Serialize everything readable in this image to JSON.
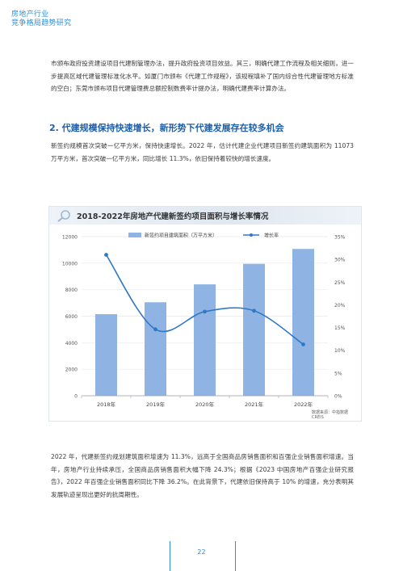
{
  "header": {
    "line1": "房地产行业",
    "line2": "竞争格局趋势研究"
  },
  "intro_paragraph": "市颁布政府投资建设项目代建制管理办法，提升政府投资项目效益。其三，明确代建工作流程及相关细则，进一步提高区域代建管理标准化水平。如厦门市颁布《代建工作规程》，该规程填补了国内综合性代建管理地方标准的空白；东莞市颁布项目代建管理费总额控制数费率计提办法，明确代建费率计算办法。",
  "section_heading": "2. 代建规模保持快速增长，新形势下代建发展存在较多机会",
  "section_paragraph": "新签约规模首次突破一亿平方米，保持快速增长。2022 年，估计代建企业代建项目新签约建筑面积为 11073 万平方米，首次突破一亿平方米，同比增长 11.3%，依旧保持着较快的增长速度。",
  "chart_title": "2018-2022年房地产代建新签约项目面积与增长率情况",
  "chart_source": "数据来源：中指数据 CREIS",
  "chart_data": {
    "type": "bar",
    "title": "2018-2022年房地产代建新签约项目面积与增长率情况",
    "categories": [
      "2018年",
      "2019年",
      "2020年",
      "2021年",
      "2022年"
    ],
    "series": [
      {
        "name": "新签约项目建筑面积（万平方米）",
        "type": "bar",
        "axis": "left",
        "values": [
          6150,
          7050,
          8400,
          9950,
          11073
        ]
      },
      {
        "name": "增长率",
        "type": "line",
        "axis": "right",
        "values": [
          31,
          14.6,
          18.5,
          18.7,
          11.3
        ]
      }
    ],
    "y_left": {
      "min": 0,
      "max": 12000,
      "ticks": [
        0,
        2000,
        4000,
        6000,
        8000,
        10000,
        12000
      ]
    },
    "y_right": {
      "min": 0,
      "max": 35,
      "ticks": [
        "0%",
        "5%",
        "10%",
        "15%",
        "20%",
        "25%",
        "30%",
        "35%"
      ]
    },
    "grid": true,
    "legend_position": "top",
    "colors": {
      "bar": "#8fb4e3",
      "line": "#2f78c6"
    }
  },
  "closing_paragraph": "2022 年，代建新签约规划建筑面积增速为 11.3%，远高于全国商品房销售面积和百强企业销售面积增速。当年，房地产行业持续承压，全国商品房销售面积大幅下降 24.3%；根据《2023 中国房地产百强企业研究报告》，2022 年百强企业销售面积同比下降 36.2%。在此背景下，代建依旧保持高于 10% 的增速，充分表明其发展轨迹呈现出更好的抗周期性。",
  "page_number": "22"
}
